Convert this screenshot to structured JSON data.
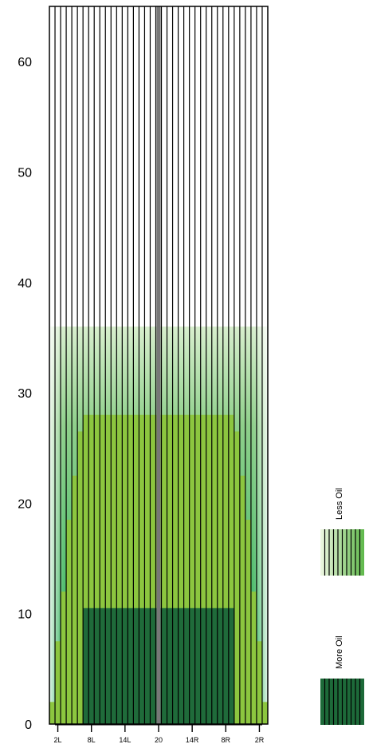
{
  "chart_data": {
    "type": "heatmap",
    "title": "",
    "xlabel": "",
    "ylabel": "",
    "ylim": [
      0,
      65
    ],
    "y_ticks": [
      0,
      10,
      20,
      30,
      40,
      50,
      60
    ],
    "x_tick_labels": [
      "2L",
      "8L",
      "14L",
      "20",
      "14R",
      "8R",
      "2R"
    ],
    "boards": 39,
    "center_board": 20,
    "pattern_length": 36,
    "inner_zone": {
      "from_board_offset": -9,
      "to_board_offset": 9,
      "top": 28
    },
    "core_zone": {
      "from_board_offset": -8,
      "to_board_offset": 8,
      "top": 10.5
    },
    "legend": [
      {
        "label": "Less Oil"
      },
      {
        "label": "More Oil"
      }
    ],
    "colors": {
      "less_oil_light": "#e7f2d6",
      "medium_green": "#8cc63f",
      "darker_green": "#2fa84f",
      "more_oil": "#1f6b3a",
      "center_board": "#777777",
      "grid": "#000000"
    }
  }
}
